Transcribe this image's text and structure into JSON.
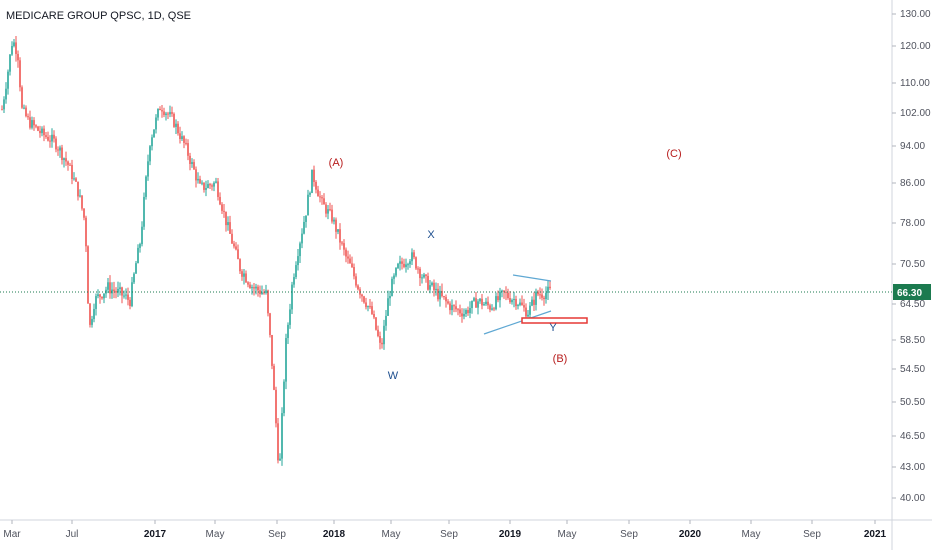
{
  "header": {
    "title": "MEDICARE GROUP QPSC, 1D, QSE"
  },
  "colors": {
    "up": "#26a69a",
    "down": "#ef5350",
    "wave_red": "#b71c1c",
    "wave_blue": "#1e4f8f",
    "price_line": "#1b7a4f",
    "triangle": "#5fa8d3",
    "target_box": "#e53935"
  },
  "chart_data": {
    "type": "candlestick",
    "y_ticks": [
      "130.00",
      "120.00",
      "110.00",
      "102.00",
      "94.00",
      "86.00",
      "78.00",
      "70.50",
      "64.50",
      "58.50",
      "54.50",
      "50.50",
      "46.50",
      "43.00",
      "40.00"
    ],
    "x_ticks": [
      {
        "label": "Mar",
        "bold": false
      },
      {
        "label": "Jul",
        "bold": false
      },
      {
        "label": "2017",
        "bold": true
      },
      {
        "label": "May",
        "bold": false
      },
      {
        "label": "Sep",
        "bold": false
      },
      {
        "label": "2018",
        "bold": true
      },
      {
        "label": "May",
        "bold": false
      },
      {
        "label": "Sep",
        "bold": false
      },
      {
        "label": "2019",
        "bold": true
      },
      {
        "label": "May",
        "bold": false
      },
      {
        "label": "Sep",
        "bold": false
      },
      {
        "label": "2020",
        "bold": true
      },
      {
        "label": "May",
        "bold": false
      },
      {
        "label": "Sep",
        "bold": false
      },
      {
        "label": "2021",
        "bold": true
      }
    ],
    "last_price": "66.30",
    "annotations": [
      {
        "label": "(A)",
        "color": "red"
      },
      {
        "label": "X",
        "color": "blue"
      },
      {
        "label": "W",
        "color": "blue"
      },
      {
        "label": "Y",
        "color": "blue"
      },
      {
        "label": "(B)",
        "color": "red"
      },
      {
        "label": "(C)",
        "color": "red"
      }
    ],
    "price_path": [
      [
        0,
        103
      ],
      [
        0.04,
        112
      ],
      [
        0.08,
        122
      ],
      [
        0.12,
        118
      ],
      [
        0.15,
        103
      ],
      [
        0.2,
        100
      ],
      [
        0.3,
        97
      ],
      [
        0.4,
        95
      ],
      [
        0.5,
        90
      ],
      [
        0.58,
        84
      ],
      [
        0.63,
        78
      ],
      [
        0.66,
        60
      ],
      [
        0.7,
        65
      ],
      [
        0.8,
        67
      ],
      [
        0.9,
        66
      ],
      [
        0.97,
        65
      ],
      [
        1.05,
        75
      ],
      [
        1.12,
        95
      ],
      [
        1.2,
        104
      ],
      [
        1.3,
        100
      ],
      [
        1.4,
        93
      ],
      [
        1.5,
        85
      ],
      [
        1.62,
        86
      ],
      [
        1.7,
        78
      ],
      [
        1.8,
        70
      ],
      [
        1.9,
        67
      ],
      [
        2.0,
        66
      ],
      [
        2.05,
        54
      ],
      [
        2.1,
        42
      ],
      [
        2.15,
        58
      ],
      [
        2.2,
        68
      ],
      [
        2.3,
        80
      ],
      [
        2.35,
        88
      ],
      [
        2.42,
        82
      ],
      [
        2.5,
        79
      ],
      [
        2.6,
        72
      ],
      [
        2.7,
        67
      ],
      [
        2.8,
        63
      ],
      [
        2.87,
        57
      ],
      [
        2.93,
        66
      ],
      [
        3.0,
        70
      ],
      [
        3.1,
        72
      ],
      [
        3.2,
        68
      ],
      [
        3.3,
        66
      ],
      [
        3.4,
        64
      ],
      [
        3.5,
        63
      ],
      [
        3.6,
        65
      ],
      [
        3.7,
        64
      ],
      [
        3.8,
        66
      ],
      [
        3.9,
        65
      ],
      [
        3.98,
        63
      ],
      [
        4.05,
        66
      ],
      [
        4.15,
        66.3
      ]
    ]
  }
}
